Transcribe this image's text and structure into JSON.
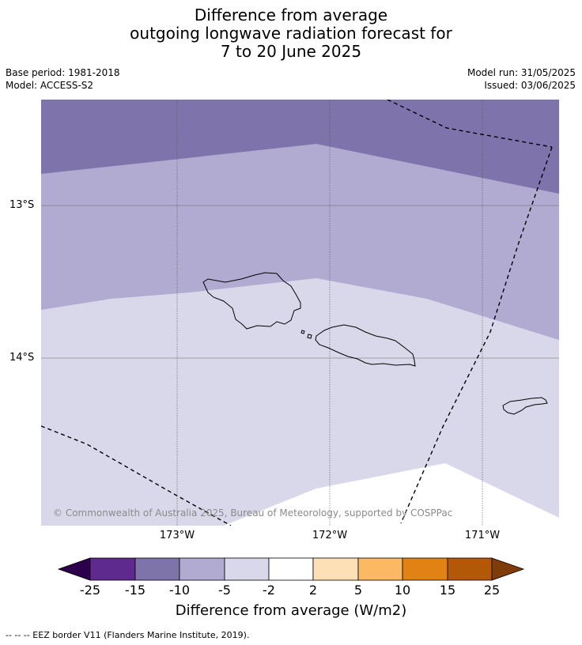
{
  "title": {
    "line1": "Difference from average",
    "line2": "outgoing longwave radiation forecast for",
    "line3": "7 to 20 June 2025"
  },
  "meta": {
    "base_period": "Base period: 1981-2018",
    "model": "Model: ACCESS-S2",
    "model_run": "Model run: 31/05/2025",
    "issued": "Issued: 03/06/2025"
  },
  "map": {
    "lat_labels": [
      "13°S",
      "14°S"
    ],
    "lon_labels": [
      "173°W",
      "172°W",
      "171°W"
    ],
    "credit": "© Commonwealth of Australia 2025, Bureau of Meteorology, supported by COSPPac",
    "fill_colors": {
      "minus10_to_minus5": "#7f73ab",
      "minus5_to_minus2": "#b1aad1",
      "minus2_to_2": "#d8d8ea",
      "neutral": "#ffffff"
    }
  },
  "colorbar": {
    "tick_labels": [
      "-25",
      "-15",
      "-10",
      "-5",
      "-2",
      "2",
      "5",
      "10",
      "15",
      "25"
    ],
    "colors": [
      "#2d004b",
      "#5e2a8e",
      "#7f73ab",
      "#b1aad1",
      "#d8d8ea",
      "#ffffff",
      "#fee0b6",
      "#fdb863",
      "#e08214",
      "#b35806",
      "#7f3b08"
    ],
    "label": "Difference from average (W/m2)"
  },
  "footnote": "--  --  -- EEZ border V11 (Flanders Marine Institute, 2019)."
}
